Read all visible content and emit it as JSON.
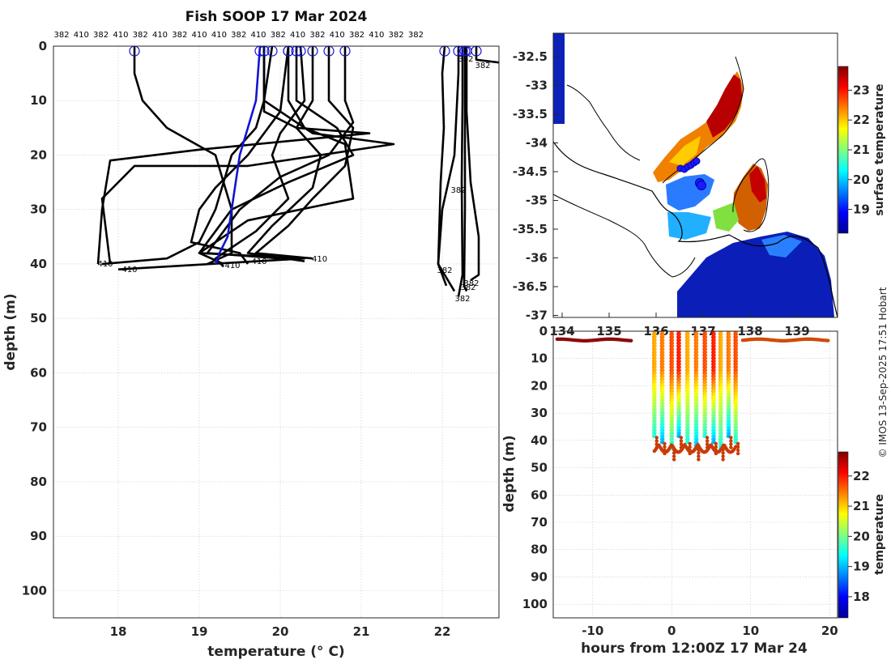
{
  "chart_data": [
    {
      "type": "line",
      "title": "Fish SOOP 17 Mar 2024",
      "xlabel": "temperature (° C)",
      "ylabel": "depth (m)",
      "xlim": [
        17.2,
        22.7
      ],
      "ylim": [
        105,
        0
      ],
      "xticks": [
        "18",
        "19",
        "20",
        "21",
        "22"
      ],
      "yticks": [
        "0",
        "10",
        "20",
        "30",
        "40",
        "50",
        "60",
        "70",
        "80",
        "90",
        "100"
      ],
      "top_labels": [
        "382",
        "410",
        "382",
        "410",
        "382",
        "410",
        "382",
        "410",
        "410",
        "382",
        "410",
        "382",
        "410",
        "382",
        "410",
        "382",
        "410",
        "382",
        "382"
      ],
      "profile_labels": [
        "410",
        "410",
        "410",
        "410",
        "410",
        "382",
        "382",
        "382",
        "382",
        "382",
        "382",
        "382"
      ],
      "highlight_profile": {
        "color": "#1414d2",
        "points": [
          [
            19.75,
            0
          ],
          [
            19.7,
            10
          ],
          [
            19.6,
            15
          ],
          [
            19.5,
            20
          ],
          [
            19.45,
            25
          ],
          [
            19.4,
            30
          ],
          [
            19.35,
            35
          ],
          [
            19.25,
            38
          ],
          [
            19.2,
            40
          ]
        ]
      },
      "profiles": [
        [
          [
            18.2,
            0
          ],
          [
            18.2,
            5
          ],
          [
            18.3,
            10
          ],
          [
            18.6,
            15
          ],
          [
            19.2,
            20
          ],
          [
            19.4,
            30
          ],
          [
            19.4,
            38
          ],
          [
            19.1,
            40
          ]
        ],
        [
          [
            19.8,
            0
          ],
          [
            19.8,
            10
          ],
          [
            19.7,
            15
          ],
          [
            19.4,
            20
          ],
          [
            19.2,
            30
          ],
          [
            19.0,
            36
          ],
          [
            18.6,
            39
          ],
          [
            17.8,
            40
          ]
        ],
        [
          [
            19.8,
            0
          ],
          [
            19.8,
            12
          ],
          [
            20.2,
            15
          ],
          [
            21.1,
            16
          ],
          [
            19.0,
            19
          ],
          [
            17.9,
            21
          ],
          [
            17.8,
            30
          ],
          [
            17.75,
            40
          ]
        ],
        [
          [
            19.9,
            0
          ],
          [
            19.8,
            10
          ],
          [
            20.4,
            16
          ],
          [
            21.4,
            18
          ],
          [
            19.6,
            22
          ],
          [
            18.2,
            22
          ],
          [
            17.8,
            28
          ],
          [
            17.9,
            40
          ]
        ],
        [
          [
            20.1,
            0
          ],
          [
            20.1,
            10
          ],
          [
            20.3,
            15
          ],
          [
            20.8,
            18
          ],
          [
            20.9,
            28
          ],
          [
            19.6,
            32
          ],
          [
            19.0,
            38
          ],
          [
            20.3,
            39
          ],
          [
            18.0,
            41
          ]
        ],
        [
          [
            20.2,
            0
          ],
          [
            20.2,
            10
          ],
          [
            20.7,
            15
          ],
          [
            20.9,
            20
          ],
          [
            20.1,
            25
          ],
          [
            19.4,
            30
          ],
          [
            19.0,
            38
          ],
          [
            19.3,
            40
          ]
        ],
        [
          [
            20.4,
            0
          ],
          [
            20.4,
            10
          ],
          [
            20.2,
            15
          ],
          [
            20.5,
            20
          ],
          [
            20.4,
            26
          ],
          [
            19.9,
            33
          ],
          [
            19.6,
            38
          ],
          [
            20.3,
            39.5
          ]
        ],
        [
          [
            20.6,
            0
          ],
          [
            20.6,
            10
          ],
          [
            20.9,
            15
          ],
          [
            20.8,
            22
          ],
          [
            20.4,
            28
          ],
          [
            20.1,
            33
          ],
          [
            19.7,
            38
          ],
          [
            20.4,
            39
          ]
        ],
        [
          [
            20.8,
            0
          ],
          [
            20.8,
            10
          ],
          [
            20.9,
            14
          ],
          [
            20.6,
            20
          ],
          [
            20.0,
            24
          ],
          [
            19.5,
            30
          ],
          [
            19.1,
            38
          ],
          [
            20.0,
            39
          ]
        ],
        [
          [
            20.25,
            0
          ],
          [
            20.3,
            10
          ],
          [
            20.0,
            16
          ],
          [
            19.9,
            20
          ],
          [
            20.1,
            28
          ],
          [
            19.7,
            34
          ],
          [
            19.2,
            39
          ],
          [
            19.3,
            40.5
          ]
        ],
        [
          [
            20.1,
            0
          ],
          [
            20.0,
            12
          ],
          [
            19.6,
            20
          ],
          [
            19.2,
            26
          ],
          [
            19.0,
            30
          ],
          [
            18.9,
            36
          ],
          [
            19.5,
            38
          ],
          [
            19.6,
            40
          ]
        ],
        [
          [
            22.03,
            0
          ],
          [
            22.0,
            5
          ],
          [
            22.02,
            15
          ],
          [
            21.98,
            25
          ],
          [
            21.95,
            40
          ],
          [
            22.05,
            44
          ]
        ],
        [
          [
            22.2,
            0
          ],
          [
            22.2,
            5
          ],
          [
            22.15,
            20
          ],
          [
            22.0,
            30
          ],
          [
            21.95,
            40
          ],
          [
            22.15,
            45
          ]
        ],
        [
          [
            22.25,
            0
          ],
          [
            22.25,
            10
          ],
          [
            22.24,
            25
          ],
          [
            22.25,
            42
          ],
          [
            22.2,
            46
          ]
        ],
        [
          [
            22.28,
            0
          ],
          [
            22.28,
            10
          ],
          [
            22.28,
            30
          ],
          [
            22.27,
            44
          ],
          [
            22.3,
            45
          ]
        ],
        [
          [
            22.3,
            0
          ],
          [
            22.3,
            12
          ],
          [
            22.35,
            25
          ],
          [
            22.45,
            35
          ],
          [
            22.45,
            42
          ],
          [
            22.35,
            43
          ]
        ],
        [
          [
            22.42,
            0
          ],
          [
            22.42,
            1
          ],
          [
            22.42,
            2.5
          ],
          [
            22.7,
            3
          ]
        ]
      ]
    },
    {
      "type": "heatmap",
      "subtitle": "surface temperature map",
      "yticks": [
        "-32.5",
        "-33",
        "-33.5",
        "-34",
        "-34.5",
        "-35",
        "-35.5",
        "-36",
        "-36.5",
        "-37"
      ],
      "xticks": [
        "134",
        "135",
        "136",
        "137",
        "138",
        "139"
      ],
      "colorbar_label": "surface temperature",
      "colorbar_ticks": [
        "19",
        "20",
        "21",
        "22",
        "23"
      ],
      "colorbar_range": [
        18.2,
        23.8
      ]
    },
    {
      "type": "scatter",
      "xlabel": "hours from 12:00Z 17 Mar 24",
      "ylabel": "depth (m)",
      "xlim": [
        -15,
        21
      ],
      "ylim": [
        105,
        0
      ],
      "xticks": [
        "-10",
        "0",
        "10",
        "20"
      ],
      "yticks": [
        "0",
        "10",
        "20",
        "30",
        "40",
        "50",
        "60",
        "70",
        "80",
        "90",
        "100"
      ],
      "colorbar_label": "temperature",
      "colorbar_ticks": [
        "18",
        "19",
        "20",
        "21",
        "22"
      ],
      "colorbar_range": [
        17.3,
        22.8
      ],
      "surface_segments": [
        [
          -14.5,
          -5
        ],
        [
          9,
          19.8
        ]
      ],
      "cast_times": [
        -2.2,
        -1.2,
        0,
        0.9,
        2.0,
        3.1,
        4.2,
        5.3,
        6.2,
        7.2,
        8.1
      ]
    }
  ],
  "credit": "© IMOS 13-Sep-2025 17:51 Hobart"
}
